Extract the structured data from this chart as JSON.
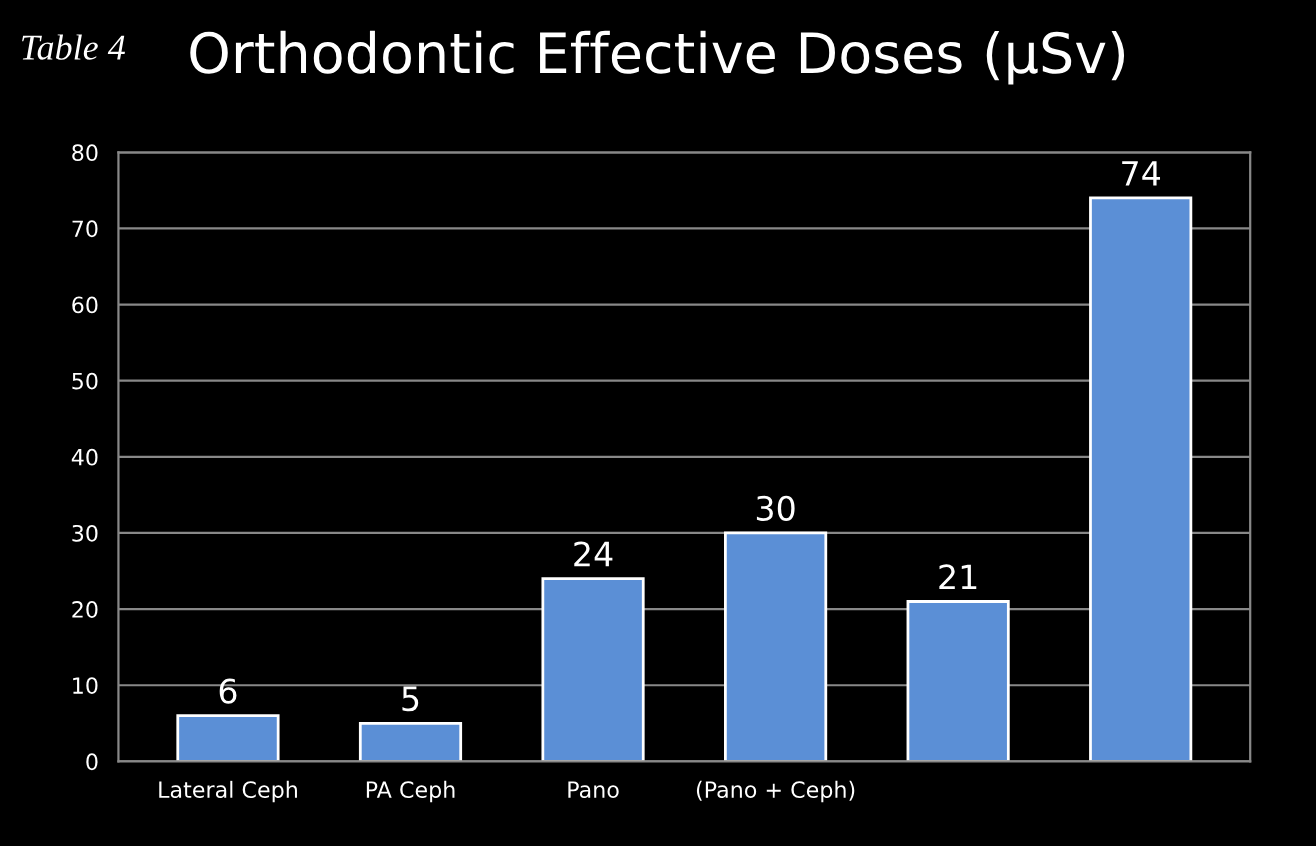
{
  "chart_data": {
    "type": "bar",
    "title": "Orthodontic Effective Doses (µSv)",
    "annotations": [
      "Table 4"
    ],
    "categories": [
      "Lateral Ceph",
      "PA Ceph",
      "Pano",
      "(Pano + Ceph)",
      null,
      null
    ],
    "values": [
      6,
      5,
      24,
      30,
      21,
      74
    ],
    "color": "#5b8fd6",
    "ylim": [
      0,
      80
    ],
    "yticks": [
      0,
      10,
      20,
      30,
      40,
      50,
      60,
      70,
      80
    ],
    "grid": "y",
    "data_labels": true
  }
}
